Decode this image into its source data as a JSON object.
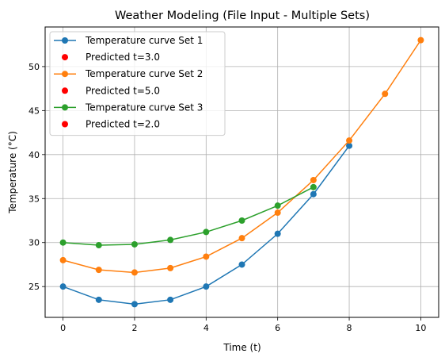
{
  "chart_data": {
    "type": "line",
    "title": "Weather Modeling (File Input - Multiple Sets)",
    "xlabel": "Time (t)",
    "ylabel": "Temperature (°C)",
    "xlim": [
      -0.5,
      10.5
    ],
    "ylim": [
      21.5,
      54.5
    ],
    "xticks": [
      0,
      2,
      4,
      6,
      8,
      10
    ],
    "yticks": [
      25,
      30,
      35,
      40,
      45,
      50
    ],
    "grid": true,
    "legend_position": "top-left",
    "series": [
      {
        "name": "Temperature curve Set 1",
        "color": "#1f77b4",
        "x": [
          0,
          1,
          2,
          3,
          4,
          5,
          6,
          7,
          8
        ],
        "y": [
          25.0,
          23.5,
          23.0,
          23.5,
          25.0,
          27.5,
          31.0,
          35.5,
          41.0
        ]
      },
      {
        "name": "Temperature curve Set 2",
        "color": "#ff7f0e",
        "x": [
          0,
          1,
          2,
          3,
          4,
          5,
          6,
          7,
          8,
          9,
          10
        ],
        "y": [
          28.0,
          26.9,
          26.6,
          27.1,
          28.4,
          30.5,
          33.4,
          37.1,
          41.6,
          46.9,
          53.0
        ]
      },
      {
        "name": "Temperature curve Set 3",
        "color": "#2ca02c",
        "x": [
          0,
          1,
          2,
          3,
          4,
          5,
          6,
          7
        ],
        "y": [
          30.0,
          29.7,
          29.8,
          30.3,
          31.2,
          32.5,
          34.2,
          36.3
        ]
      }
    ],
    "predictions": [
      {
        "name": "Predicted t=3.0",
        "color": "#ff0000"
      },
      {
        "name": "Predicted t=5.0",
        "color": "#ff0000"
      },
      {
        "name": "Predicted t=2.0",
        "color": "#ff0000"
      }
    ]
  }
}
